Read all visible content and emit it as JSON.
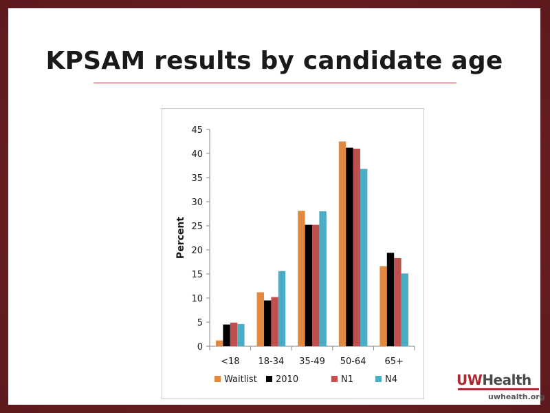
{
  "slide": {
    "title": "KPSAM results by candidate age"
  },
  "logo": {
    "uw": "UW",
    "health": "Health",
    "url": "uwhealth.org"
  },
  "colors": {
    "frame": "#6e1f22",
    "title_rule": "#b53a3f"
  },
  "chart_data": {
    "type": "bar",
    "categories": [
      "<18",
      "18-34",
      "35-49",
      "50-64",
      "65+"
    ],
    "series": [
      {
        "name": "Waitlist",
        "color": "#e0893f",
        "values": [
          1.2,
          11.2,
          28.1,
          42.5,
          16.6
        ]
      },
      {
        "name": "2010",
        "color": "#000000",
        "values": [
          4.5,
          9.5,
          25.2,
          41.2,
          19.4
        ]
      },
      {
        "name": "N1",
        "color": "#c0504d",
        "values": [
          4.9,
          10.2,
          25.2,
          41.0,
          18.3
        ]
      },
      {
        "name": "N4",
        "color": "#4bacc6",
        "values": [
          4.6,
          15.6,
          28.0,
          36.8,
          15.1
        ]
      }
    ],
    "ylabel": "Percent",
    "xlabel": "",
    "ylim": [
      0,
      45
    ],
    "yticks": [
      0,
      5,
      10,
      15,
      20,
      25,
      30,
      35,
      40,
      45
    ],
    "grid": false,
    "legend": "bottom"
  }
}
